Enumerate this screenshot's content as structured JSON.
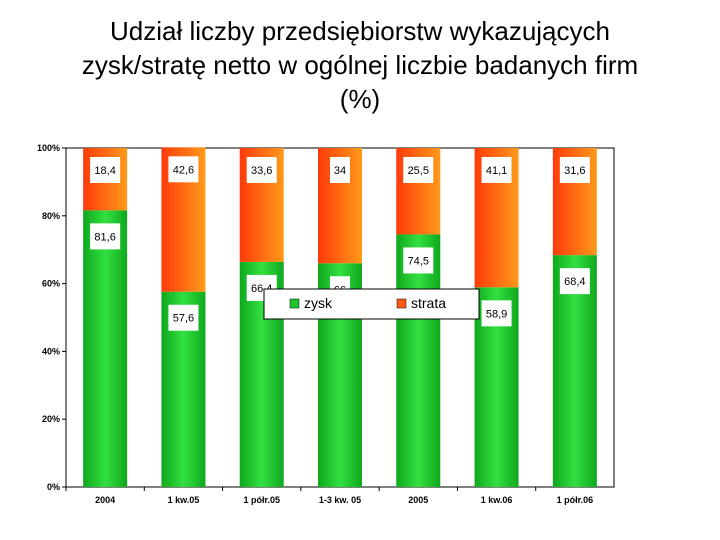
{
  "slide": {
    "title_lines": [
      "Udział liczby przedsiębiorstw wykazujących",
      "zysk/stratę netto w ogólnej liczbie badanych firm",
      "(%)"
    ]
  },
  "colors": {
    "profit": "#1fc52d",
    "loss": "#ff5a14",
    "label_box": "#ffffff"
  },
  "chart_data": {
    "type": "bar",
    "stacked": true,
    "categories": [
      "2004",
      "1 kw.05",
      "1 półr.05",
      "1-3 kw. 05",
      "2005",
      "1 kw.06",
      "1 półr.06"
    ],
    "series": [
      {
        "name": "zysk",
        "values": [
          81.6,
          57.6,
          66.4,
          66,
          74.5,
          58.9,
          68.4
        ],
        "labels": [
          "81,6",
          "57,6",
          "66,4",
          "66",
          "74,5",
          "58,9",
          "68,4"
        ]
      },
      {
        "name": "strata",
        "values": [
          18.4,
          42.6,
          33.6,
          34,
          25.5,
          41.1,
          31.6
        ],
        "labels": [
          "18,4",
          "42,6",
          "33,6",
          "34",
          "25,5",
          "41,1",
          "31,6"
        ]
      }
    ],
    "y_ticks": [
      "0%",
      "20%",
      "40%",
      "60%",
      "80%",
      "100%"
    ],
    "ylim": [
      0,
      100
    ],
    "grid": false,
    "legend": "center",
    "xlabel": "",
    "ylabel": ""
  }
}
